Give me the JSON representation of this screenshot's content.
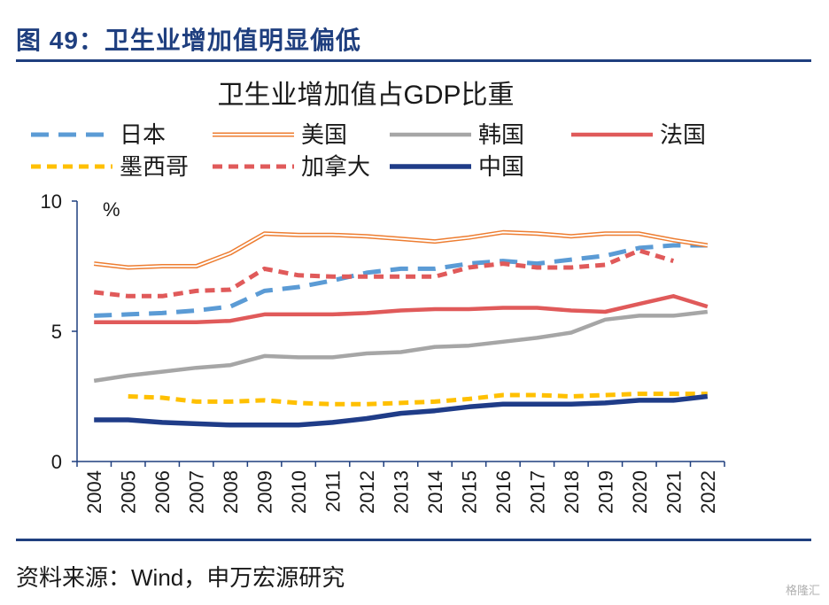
{
  "figure": {
    "title": "图 49：卫生业增加值明显偏低",
    "source": "资料来源：Wind，申万宏源研究",
    "watermark": "格隆汇"
  },
  "colors": {
    "rule": "#1f3f7f",
    "title": "#1f3f7f"
  },
  "chart_data": {
    "type": "line",
    "title": "卫生业增加值占GDP比重",
    "unit_label": "%",
    "ylim": [
      0,
      10
    ],
    "yticks": [
      0,
      5,
      10
    ],
    "x": [
      "2004",
      "2005",
      "2006",
      "2007",
      "2008",
      "2009",
      "2010",
      "2011",
      "2012",
      "2013",
      "2014",
      "2015",
      "2016",
      "2017",
      "2018",
      "2019",
      "2020",
      "2021",
      "2022"
    ],
    "series": [
      {
        "name": "日本",
        "style": "long-dash",
        "color": "#5b9bd5",
        "values": [
          5.6,
          5.65,
          5.7,
          5.8,
          5.95,
          6.55,
          6.7,
          6.95,
          7.25,
          7.4,
          7.4,
          7.6,
          7.7,
          7.6,
          7.75,
          7.9,
          8.2,
          8.3,
          8.3
        ]
      },
      {
        "name": "美国",
        "style": "double",
        "color": "#ed7d31",
        "values": [
          7.6,
          7.45,
          7.5,
          7.5,
          8.0,
          8.75,
          8.7,
          8.7,
          8.65,
          8.55,
          8.45,
          8.6,
          8.8,
          8.75,
          8.65,
          8.75,
          8.75,
          8.5,
          8.3
        ]
      },
      {
        "name": "韩国",
        "style": "solid",
        "color": "#a6a6a6",
        "values": [
          3.1,
          3.3,
          3.45,
          3.6,
          3.7,
          4.05,
          4.0,
          4.0,
          4.15,
          4.2,
          4.4,
          4.45,
          4.6,
          4.75,
          4.95,
          5.45,
          5.6,
          5.6,
          5.75
        ]
      },
      {
        "name": "法国",
        "style": "solid",
        "color": "#e05a5a",
        "values": [
          5.35,
          5.35,
          5.35,
          5.35,
          5.4,
          5.65,
          5.65,
          5.65,
          5.7,
          5.8,
          5.85,
          5.85,
          5.9,
          5.9,
          5.8,
          5.75,
          6.05,
          6.35,
          5.95
        ]
      },
      {
        "name": "墨西哥",
        "style": "dash",
        "color": "#ffc000",
        "values": [
          null,
          2.5,
          2.45,
          2.3,
          2.3,
          2.35,
          2.25,
          2.2,
          2.2,
          2.25,
          2.3,
          2.4,
          2.55,
          2.55,
          2.5,
          2.55,
          2.6,
          2.6,
          2.6
        ]
      },
      {
        "name": "加拿大",
        "style": "dash",
        "color": "#e05a5a",
        "values": [
          6.5,
          6.35,
          6.35,
          6.55,
          6.6,
          7.4,
          7.15,
          7.1,
          7.1,
          7.1,
          7.1,
          7.45,
          7.6,
          7.45,
          7.45,
          7.55,
          8.1,
          7.7,
          null
        ]
      },
      {
        "name": "中国",
        "style": "solid-thick",
        "color": "#1f3c88",
        "values": [
          1.6,
          1.6,
          1.5,
          1.45,
          1.4,
          1.4,
          1.4,
          1.5,
          1.65,
          1.85,
          1.95,
          2.1,
          2.2,
          2.2,
          2.2,
          2.25,
          2.35,
          2.35,
          2.5
        ]
      }
    ]
  }
}
